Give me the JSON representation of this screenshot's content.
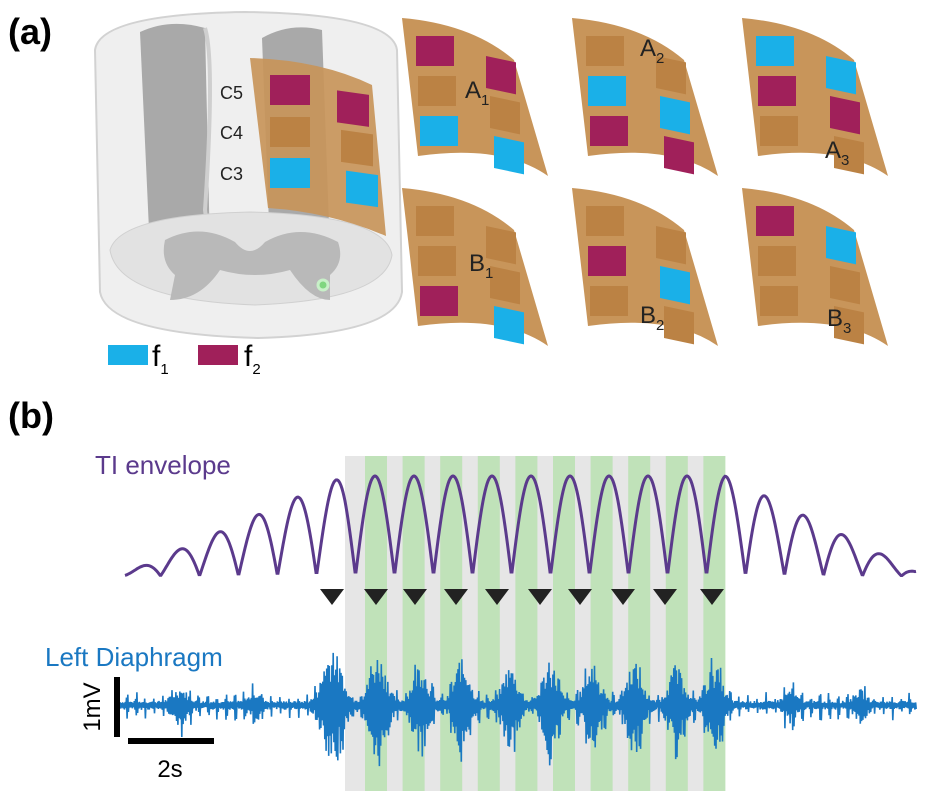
{
  "panel_a": {
    "label": "(a)",
    "levels": [
      "C5",
      "C4",
      "C3"
    ],
    "configurations": [
      {
        "name": "A",
        "subscript": "1"
      },
      {
        "name": "A",
        "subscript": "2"
      },
      {
        "name": "A",
        "subscript": "3"
      },
      {
        "name": "B",
        "subscript": "1"
      },
      {
        "name": "B",
        "subscript": "2"
      },
      {
        "name": "B",
        "subscript": "3"
      }
    ],
    "legend": [
      {
        "name": "f",
        "subscript": "1"
      },
      {
        "name": "f",
        "subscript": "2"
      }
    ]
  },
  "panel_b": {
    "label": "(b)",
    "traces": [
      "TI envelope",
      "Left Diaphragm"
    ],
    "scale_bars": [
      "1mV",
      "2s"
    ]
  }
}
